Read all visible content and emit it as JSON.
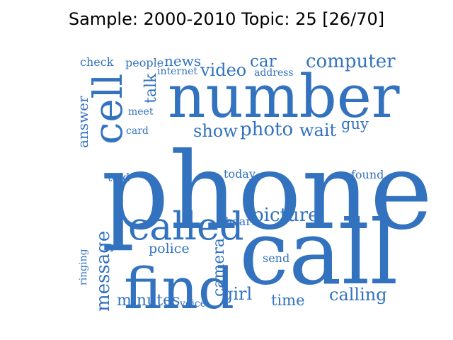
{
  "title": "Sample: 2000-2010 Topic: 25 [26/70]",
  "word_color": "#3272BE",
  "words": [
    "phone",
    "call",
    "number",
    "find",
    "called",
    "cell",
    "picture",
    "photo",
    "message",
    "computer",
    "show",
    "wait",
    "video",
    "camera",
    "calling",
    "minutes",
    "police",
    "girl",
    "time",
    "car",
    "guy",
    "talk",
    "news",
    "answer",
    "people",
    "check",
    "send",
    "hear",
    "today",
    "told",
    "found",
    "address",
    "internet",
    "meet",
    "card",
    "voice",
    "ringing"
  ]
}
